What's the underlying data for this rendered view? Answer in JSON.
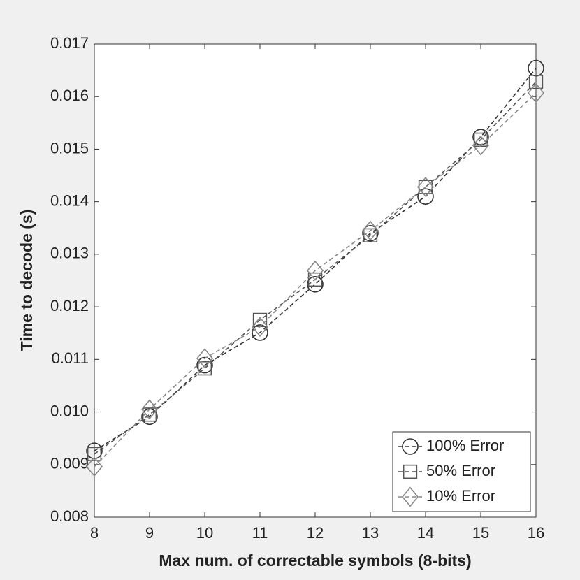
{
  "chart_data": {
    "type": "line",
    "x_label": "Max num. of correctable symbols (8-bits)",
    "y_label": "Time to decode (s)",
    "x": [
      8,
      9,
      10,
      11,
      12,
      13,
      14,
      15,
      16
    ],
    "xlim": [
      8,
      16
    ],
    "xticks": [
      8,
      9,
      10,
      11,
      12,
      13,
      14,
      15,
      16
    ],
    "ylim": [
      0.008,
      0.017
    ],
    "yticks": [
      0.008,
      0.009,
      {
        "value": 0.01,
        "label": "0.010"
      },
      0.011,
      0.012,
      0.013,
      0.014,
      0.015,
      0.016,
      0.017
    ],
    "legend_location": "lower right",
    "series": [
      {
        "name": "100% Error",
        "color": "#333333",
        "marker": "circle",
        "values": [
          0.00926,
          0.00991,
          0.01089,
          0.01151,
          0.01243,
          0.0134,
          0.0141,
          0.01523,
          0.01654
        ]
      },
      {
        "name": "50% Error",
        "color": "#555555",
        "marker": "square",
        "values": [
          0.0092,
          0.00995,
          0.01083,
          0.01175,
          0.01252,
          0.01336,
          0.01428,
          0.01518,
          0.01628
        ]
      },
      {
        "name": "10% Error",
        "color": "#888888",
        "marker": "diamond",
        "values": [
          0.00896,
          0.01005,
          0.01102,
          0.01162,
          0.01269,
          0.01345,
          0.01428,
          0.01507,
          0.01607
        ]
      }
    ]
  }
}
